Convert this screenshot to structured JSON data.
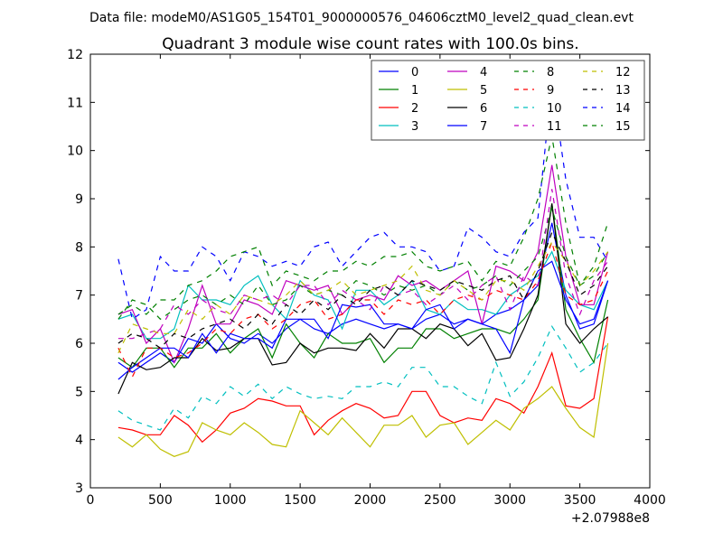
{
  "header": {
    "file_label": "Data file: modeM0/AS1G05_154T01_9000000576_04606cztM0_level2_quad_clean.evt"
  },
  "chart_data": {
    "type": "line",
    "title": "Quadrant 3 module wise count rates with 100.0s bins.",
    "xlabel": "",
    "ylabel": "",
    "x_offset_label": "+2.07988e8",
    "xlim": [
      0,
      4000
    ],
    "ylim": [
      3,
      12
    ],
    "xticks": [
      0,
      500,
      1000,
      1500,
      2000,
      2500,
      3000,
      3500,
      4000
    ],
    "yticks": [
      3,
      4,
      5,
      6,
      7,
      8,
      9,
      10,
      11,
      12
    ],
    "grid": false,
    "legend_position": "top-right",
    "x": [
      200,
      300,
      400,
      500,
      600,
      700,
      800,
      900,
      1000,
      1100,
      1200,
      1300,
      1400,
      1500,
      1600,
      1700,
      1800,
      1900,
      2000,
      2100,
      2200,
      2300,
      2400,
      2500,
      2600,
      2700,
      2800,
      2900,
      3000,
      3100,
      3200,
      3300,
      3400,
      3500,
      3600,
      3700
    ],
    "series": [
      {
        "name": "0",
        "color": "#0000ff",
        "dash": "solid",
        "values": [
          5.6,
          5.4,
          5.6,
          5.8,
          5.6,
          6.1,
          6.0,
          6.4,
          6.1,
          6.0,
          6.2,
          6.0,
          6.3,
          6.5,
          6.3,
          6.2,
          6.4,
          6.5,
          6.4,
          6.3,
          6.4,
          6.3,
          6.5,
          6.6,
          6.4,
          6.5,
          6.4,
          6.6,
          6.7,
          6.9,
          7.2,
          8.5,
          7.0,
          6.3,
          6.4,
          7.3
        ]
      },
      {
        "name": "1",
        "color": "#008000",
        "dash": "solid",
        "values": [
          5.7,
          5.5,
          5.9,
          5.9,
          5.5,
          5.9,
          5.9,
          6.2,
          5.8,
          6.1,
          6.3,
          5.7,
          6.4,
          6.0,
          5.7,
          6.2,
          6.0,
          6.0,
          6.1,
          5.6,
          5.9,
          5.9,
          6.3,
          6.3,
          6.1,
          6.2,
          6.3,
          6.3,
          6.2,
          6.5,
          6.9,
          8.9,
          6.7,
          6.1,
          5.6,
          6.9
        ]
      },
      {
        "name": "2",
        "color": "#ff0000",
        "dash": "solid",
        "values": [
          4.25,
          4.2,
          4.1,
          4.1,
          4.5,
          4.3,
          3.95,
          4.2,
          4.55,
          4.65,
          4.85,
          4.8,
          4.7,
          4.7,
          4.1,
          4.4,
          4.6,
          4.75,
          4.65,
          4.45,
          4.5,
          5.0,
          5.0,
          4.5,
          4.35,
          4.45,
          4.4,
          4.85,
          4.75,
          4.55,
          5.1,
          5.8,
          4.7,
          4.65,
          4.85,
          6.55
        ]
      },
      {
        "name": "3",
        "color": "#00bfbf",
        "dash": "solid",
        "values": [
          6.5,
          6.6,
          6.1,
          6.1,
          6.3,
          7.2,
          6.9,
          6.9,
          6.8,
          7.2,
          7.4,
          6.8,
          6.5,
          7.3,
          7.0,
          6.9,
          6.3,
          7.1,
          7.1,
          6.8,
          7.0,
          7.3,
          6.7,
          6.6,
          6.9,
          6.7,
          6.7,
          6.6,
          7.0,
          7.2,
          7.4,
          7.9,
          7.1,
          6.8,
          6.7,
          7.3
        ]
      },
      {
        "name": "4",
        "color": "#bf00bf",
        "dash": "solid",
        "values": [
          6.6,
          6.7,
          6.0,
          6.3,
          5.6,
          6.3,
          7.2,
          6.4,
          6.4,
          6.9,
          6.8,
          6.6,
          7.3,
          7.2,
          7.1,
          7.2,
          6.6,
          6.9,
          7.0,
          6.9,
          7.4,
          7.2,
          7.3,
          7.1,
          7.3,
          7.5,
          6.4,
          7.6,
          7.5,
          7.3,
          7.9,
          9.7,
          7.8,
          6.8,
          6.8,
          7.9
        ]
      },
      {
        "name": "5",
        "color": "#bfbf00",
        "dash": "solid",
        "values": [
          4.05,
          3.85,
          4.1,
          3.8,
          3.65,
          3.75,
          4.35,
          4.2,
          4.1,
          4.35,
          4.15,
          3.9,
          3.85,
          4.6,
          4.35,
          4.1,
          4.45,
          4.15,
          3.85,
          4.3,
          4.3,
          4.5,
          4.05,
          4.3,
          4.35,
          3.9,
          4.15,
          4.4,
          4.2,
          4.65,
          4.85,
          5.1,
          4.65,
          4.25,
          4.05,
          6.0
        ]
      },
      {
        "name": "6",
        "color": "#000000",
        "dash": "solid",
        "values": [
          4.95,
          5.6,
          5.45,
          5.5,
          5.7,
          5.7,
          6.1,
          5.85,
          5.9,
          6.1,
          6.1,
          5.55,
          5.6,
          6.0,
          5.8,
          5.9,
          5.9,
          5.85,
          6.2,
          5.9,
          6.3,
          6.3,
          6.1,
          6.4,
          6.3,
          5.95,
          6.2,
          5.65,
          5.7,
          6.3,
          7.0,
          8.9,
          6.4,
          6.0,
          6.3,
          6.55
        ]
      },
      {
        "name": "7",
        "color": "#0000ff",
        "dash": "solid",
        "values": [
          5.25,
          5.5,
          5.7,
          5.9,
          5.9,
          5.7,
          6.2,
          5.8,
          6.2,
          6.1,
          6.1,
          5.9,
          6.5,
          6.5,
          6.5,
          6.1,
          6.8,
          6.75,
          6.8,
          6.4,
          6.4,
          6.3,
          6.7,
          6.8,
          6.3,
          6.5,
          6.4,
          6.3,
          5.8,
          6.9,
          7.5,
          7.7,
          6.9,
          6.4,
          6.5,
          7.3
        ]
      },
      {
        "name": "8",
        "color": "#008000",
        "dash": "dashed",
        "values": [
          6.5,
          6.9,
          6.8,
          6.5,
          6.7,
          6.9,
          7.0,
          6.8,
          7.0,
          6.8,
          7.2,
          6.8,
          6.9,
          7.2,
          7.0,
          7.1,
          7.0,
          7.3,
          7.2,
          7.0,
          7.2,
          7.1,
          7.2,
          7.0,
          7.3,
          7.1,
          7.2,
          7.4,
          7.2,
          7.5,
          7.8,
          8.8,
          7.8,
          7.2,
          7.4,
          7.9
        ]
      },
      {
        "name": "9",
        "color": "#ff0000",
        "dash": "dashed",
        "values": [
          5.9,
          5.3,
          5.9,
          5.9,
          5.7,
          5.8,
          6.0,
          6.3,
          6.2,
          6.5,
          6.6,
          6.3,
          6.5,
          6.8,
          6.9,
          6.5,
          6.6,
          6.9,
          6.9,
          6.6,
          6.9,
          6.8,
          6.9,
          6.6,
          6.9,
          7.0,
          6.9,
          7.1,
          7.0,
          6.9,
          7.3,
          8.1,
          7.0,
          6.8,
          6.9,
          7.5
        ]
      },
      {
        "name": "10",
        "color": "#00bfbf",
        "dash": "dashed",
        "values": [
          4.6,
          4.4,
          4.3,
          4.2,
          4.65,
          4.45,
          4.9,
          4.75,
          5.1,
          4.9,
          5.15,
          4.85,
          5.1,
          4.95,
          4.85,
          4.9,
          4.85,
          5.1,
          5.1,
          5.2,
          5.1,
          5.5,
          5.5,
          5.1,
          5.1,
          4.9,
          4.75,
          5.6,
          4.9,
          5.2,
          5.7,
          6.35,
          5.9,
          5.4,
          5.6,
          6.0
        ]
      },
      {
        "name": "11",
        "color": "#bf00bf",
        "dash": "dashed",
        "values": [
          6.1,
          6.1,
          6.2,
          6.3,
          6.8,
          6.6,
          6.9,
          6.7,
          6.6,
          7.0,
          6.9,
          7.0,
          6.8,
          7.2,
          7.2,
          6.8,
          7.1,
          6.9,
          6.7,
          7.2,
          7.0,
          7.1,
          6.8,
          7.0,
          7.2,
          6.9,
          7.2,
          7.4,
          6.7,
          7.4,
          7.2,
          9.2,
          7.4,
          6.6,
          7.3,
          7.7
        ]
      },
      {
        "name": "12",
        "color": "#bfbf00",
        "dash": "dashed",
        "values": [
          5.8,
          6.4,
          6.3,
          6.2,
          6.2,
          6.7,
          6.5,
          6.8,
          6.6,
          7.0,
          6.9,
          6.8,
          7.0,
          7.3,
          7.0,
          7.1,
          7.3,
          7.0,
          7.1,
          7.2,
          7.3,
          7.6,
          7.1,
          7.0,
          7.3,
          7.1,
          6.9,
          7.3,
          7.3,
          7.1,
          7.6,
          8.1,
          7.7,
          7.2,
          7.5,
          7.9
        ]
      },
      {
        "name": "13",
        "color": "#000000",
        "dash": "dashed",
        "values": [
          6.0,
          6.2,
          6.1,
          5.9,
          6.2,
          6.1,
          6.3,
          6.4,
          6.5,
          6.3,
          6.6,
          6.4,
          6.8,
          6.6,
          6.9,
          6.7,
          7.0,
          6.8,
          7.1,
          7.2,
          7.0,
          7.3,
          7.2,
          7.1,
          7.3,
          7.2,
          7.1,
          7.3,
          7.4,
          6.9,
          7.5,
          8.3,
          7.7,
          7.0,
          7.2,
          7.6
        ]
      },
      {
        "name": "14",
        "color": "#0000ff",
        "dash": "dashed",
        "values": [
          7.75,
          6.5,
          6.7,
          7.8,
          7.5,
          7.5,
          8.0,
          7.8,
          7.3,
          7.9,
          7.8,
          7.6,
          7.7,
          7.6,
          8.0,
          8.1,
          7.6,
          7.9,
          8.2,
          8.3,
          8.0,
          8.0,
          7.9,
          7.5,
          7.6,
          8.4,
          8.2,
          7.9,
          7.8,
          8.3,
          8.6,
          11.4,
          9.4,
          8.2,
          8.2,
          7.7
        ]
      },
      {
        "name": "15",
        "color": "#008000",
        "dash": "dashed",
        "values": [
          6.6,
          6.8,
          6.6,
          6.9,
          6.9,
          7.2,
          7.3,
          7.5,
          7.8,
          7.9,
          8.0,
          7.2,
          7.5,
          7.4,
          7.3,
          7.5,
          7.5,
          7.7,
          7.6,
          7.8,
          7.8,
          7.9,
          7.6,
          7.5,
          7.6,
          7.7,
          7.3,
          7.7,
          7.6,
          8.2,
          9.0,
          10.3,
          8.5,
          7.2,
          7.6,
          8.5
        ]
      }
    ]
  }
}
